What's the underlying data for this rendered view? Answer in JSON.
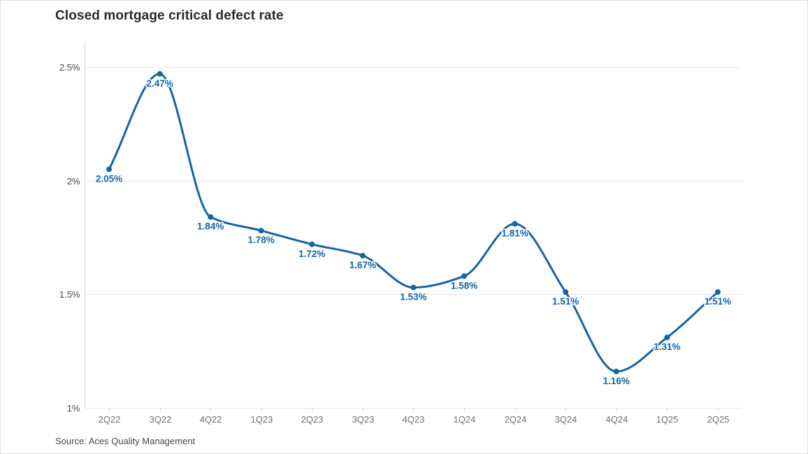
{
  "header": {
    "title": "Closed mortgage critical defect rate"
  },
  "footer": {
    "source": "Source: Aces Quality Management"
  },
  "chart_data": {
    "type": "line",
    "title": "Closed mortgage critical defect rate",
    "categories": [
      "2Q22",
      "3Q22",
      "4Q22",
      "1Q23",
      "2Q23",
      "3Q23",
      "4Q23",
      "1Q24",
      "2Q24",
      "3Q24",
      "4Q24",
      "1Q25",
      "2Q25"
    ],
    "series": [
      {
        "name": "Closed mortgage critical defect rate",
        "values": [
          2.05,
          2.47,
          1.84,
          1.78,
          1.72,
          1.67,
          1.53,
          1.58,
          1.81,
          1.51,
          1.16,
          1.31,
          1.51
        ]
      }
    ],
    "point_labels": [
      "2.05%",
      "2.47%",
      "1.84%",
      "1.78%",
      "1.72%",
      "1.67%",
      "1.53%",
      "1.58%",
      "1.81%",
      "1.51%",
      "1.16%",
      "1.31%",
      "1.51%"
    ],
    "xlabel": "",
    "ylabel": "",
    "ylim": [
      1,
      2.5
    ],
    "y_ticks": [
      {
        "value": 1,
        "label": "1%"
      },
      {
        "value": 1.5,
        "label": "1.5%"
      },
      {
        "value": 2,
        "label": "2%"
      },
      {
        "value": 2.5,
        "label": "2.5%"
      }
    ],
    "grid": "horizontal",
    "legend_position": "none",
    "line_color": "#1464a5",
    "label_color": "#1464a5",
    "curve": "smooth-monotone",
    "source": "Source: Aces Quality Management"
  }
}
